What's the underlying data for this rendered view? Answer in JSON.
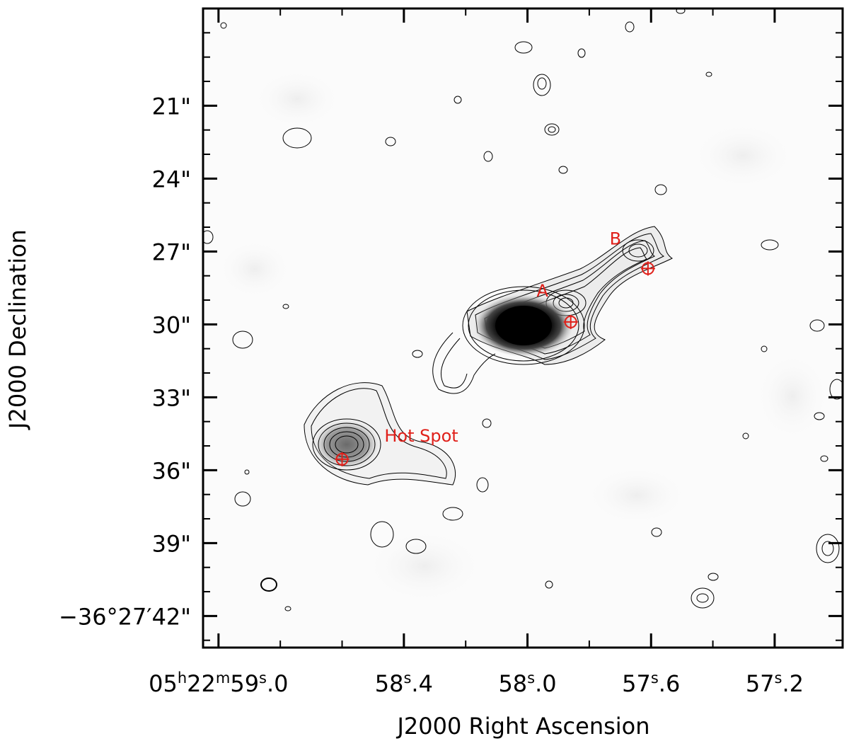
{
  "chart_data": {
    "type": "contour-image",
    "xlabel": "J2000 Right Ascension",
    "ylabel": "J2000 Declination",
    "x_ticks": [
      {
        "ra_s": 59.0,
        "label_parts": [
          [
            "05",
            ""
          ],
          [
            "h",
            "sup"
          ],
          [
            "22",
            ""
          ],
          [
            "m",
            "sup"
          ],
          [
            "59",
            ""
          ],
          [
            "s",
            "sup"
          ],
          [
            ".0",
            ""
          ]
        ]
      },
      {
        "ra_s": 58.4,
        "label_parts": [
          [
            "58",
            ""
          ],
          [
            "s",
            "sup"
          ],
          [
            ".4",
            ""
          ]
        ]
      },
      {
        "ra_s": 58.0,
        "label_parts": [
          [
            "58",
            ""
          ],
          [
            "s",
            "sup"
          ],
          [
            ".0",
            ""
          ]
        ]
      },
      {
        "ra_s": 57.6,
        "label_parts": [
          [
            "57",
            ""
          ],
          [
            "s",
            "sup"
          ],
          [
            ".6",
            ""
          ]
        ]
      },
      {
        "ra_s": 57.2,
        "label_parts": [
          [
            "57",
            ""
          ],
          [
            "s",
            "sup"
          ],
          [
            ".2",
            ""
          ]
        ]
      }
    ],
    "y_ticks": [
      {
        "dec_arcsec": 21,
        "label": "21\""
      },
      {
        "dec_arcsec": 24,
        "label": "24\""
      },
      {
        "dec_arcsec": 27,
        "label": "27\""
      },
      {
        "dec_arcsec": 30,
        "label": "30\""
      },
      {
        "dec_arcsec": 33,
        "label": "33\""
      },
      {
        "dec_arcsec": 36,
        "label": "36\""
      },
      {
        "dec_arcsec": 39,
        "label": "39\""
      },
      {
        "dec_arcsec": 42,
        "label": "−36°27′42\""
      }
    ],
    "xlim_ra_s": [
      59.05,
      56.98
    ],
    "ylim_dec_arcsec": [
      17.0,
      43.3
    ],
    "sources": [
      {
        "name": "core",
        "ra_s": 57.99,
        "dec_arcsec": 30.85,
        "kind": "bright-core"
      },
      {
        "name": "Hot Spot",
        "ra_s": 58.6,
        "dec_arcsec": 35.55,
        "kind": "hotspot"
      }
    ],
    "markers": [
      {
        "label": "A",
        "ra_s": 57.86,
        "dec_arcsec": 29.9
      },
      {
        "label": "B",
        "ra_s": 57.61,
        "dec_arcsec": 27.7
      },
      {
        "label": "Hot Spot",
        "ra_s": 58.6,
        "dec_arcsec": 35.55
      }
    ],
    "colors": {
      "marker": "#e0201a",
      "contour": "#000000",
      "core": "#050505"
    }
  }
}
